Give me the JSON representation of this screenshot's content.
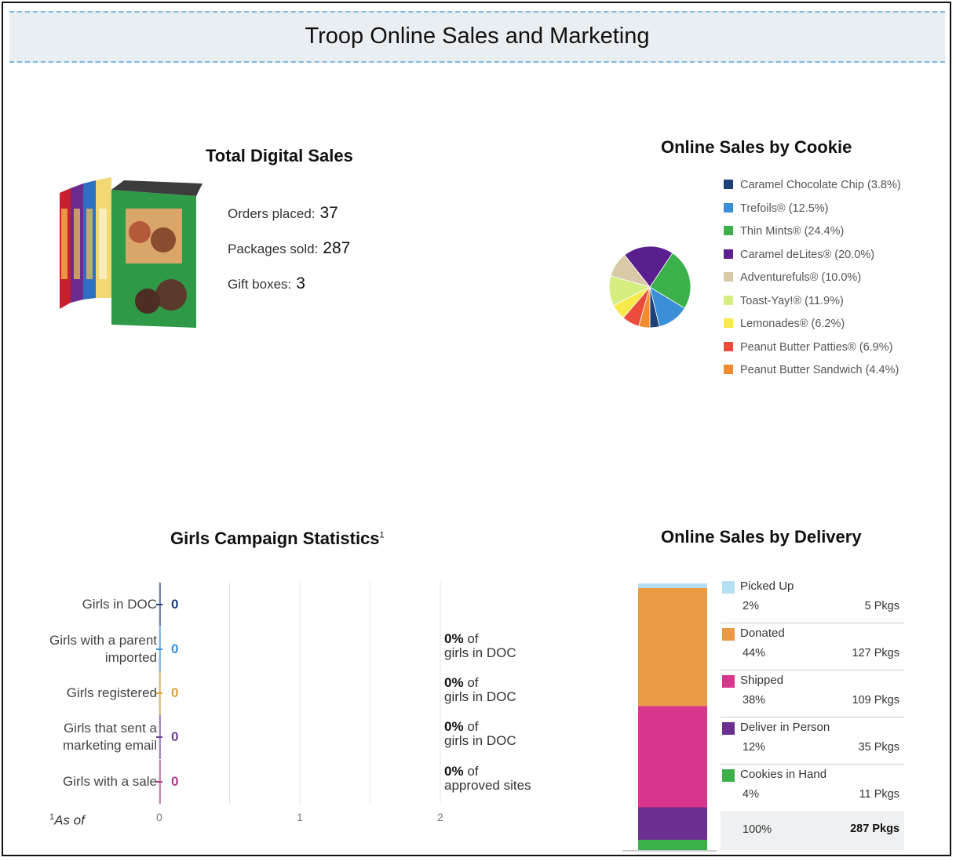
{
  "page": {
    "title": "Troop Online Sales and Marketing"
  },
  "digital": {
    "title": "Total Digital Sales",
    "stats": [
      {
        "label": "Orders placed:",
        "value": "37"
      },
      {
        "label": "Packages sold:",
        "value": "287"
      },
      {
        "label": "Gift boxes:",
        "value": "3"
      }
    ]
  },
  "cookies": {
    "title": "Online Sales by Cookie",
    "legend": [
      {
        "name": "Caramel Chocolate Chip (3.8%)",
        "color": "#1f3f7a"
      },
      {
        "name": "Trefoils® (12.5%)",
        "color": "#3a8fd6"
      },
      {
        "name": "Thin Mints® (24.4%)",
        "color": "#3cb04a"
      },
      {
        "name": "Caramel deLites® (20.0%)",
        "color": "#5a1f8f"
      },
      {
        "name": "Adventurefuls® (10.0%)",
        "color": "#d8c9a8"
      },
      {
        "name": "Toast-Yay!® (11.9%)",
        "color": "#d6ee7f"
      },
      {
        "name": "Lemonades® (6.2%)",
        "color": "#f7ea4a"
      },
      {
        "name": "Peanut Butter Patties® (6.9%)",
        "color": "#ea4d3c"
      },
      {
        "name": "Peanut Butter Sandwich (4.4%)",
        "color": "#f08b32"
      }
    ]
  },
  "girls": {
    "title": "Girls Campaign Statistics",
    "superscript": "1",
    "footnote_marker": "1",
    "footnote": "As of",
    "rows": [
      {
        "label": "Girls in DOC",
        "value": "0",
        "color": "#1f3f7a",
        "pct": "",
        "pct_of": "",
        "pct_target": ""
      },
      {
        "label": "Girls with a parent imported",
        "value": "0",
        "color": "#3a8fd6",
        "pct": "0%",
        "pct_of": "of",
        "pct_target": "girls in DOC"
      },
      {
        "label": "Girls registered",
        "value": "0",
        "color": "#d9a33a",
        "pct": "0%",
        "pct_of": "of",
        "pct_target": "girls in DOC"
      },
      {
        "label": "Girls that sent a marketing email",
        "value": "0",
        "color": "#6d3f96",
        "pct": "0%",
        "pct_of": "of",
        "pct_target": "girls in DOC"
      },
      {
        "label": "Girls with a sale",
        "value": "0",
        "color": "#b23a8c",
        "pct": "0%",
        "pct_of": "of",
        "pct_target": "approved sites"
      }
    ],
    "ticks": [
      "0",
      "1",
      "2"
    ]
  },
  "delivery": {
    "title": "Online Sales by Delivery",
    "items": [
      {
        "name": "Picked Up",
        "pct": "2%",
        "pkgs": "5 Pkgs",
        "color": "#b5dff2"
      },
      {
        "name": "Donated",
        "pct": "44%",
        "pkgs": "127 Pkgs",
        "color": "#ea9a45"
      },
      {
        "name": "Shipped",
        "pct": "38%",
        "pkgs": "109 Pkgs",
        "color": "#d8368a"
      },
      {
        "name": "Deliver in Person",
        "pct": "12%",
        "pkgs": "35 Pkgs",
        "color": "#6a2f8f"
      },
      {
        "name": "Cookies in Hand",
        "pct": "4%",
        "pkgs": "11 Pkgs",
        "color": "#3cb04a"
      }
    ],
    "total_pct": "100%",
    "total_pkgs": "287 Pkgs"
  },
  "chart_data": [
    {
      "type": "pie",
      "title": "Online Sales by Cookie",
      "categories": [
        "Caramel Chocolate Chip",
        "Trefoils®",
        "Thin Mints®",
        "Caramel deLites®",
        "Adventurefuls®",
        "Toast-Yay!®",
        "Lemonades®",
        "Peanut Butter Patties®",
        "Peanut Butter Sandwich"
      ],
      "values": [
        3.8,
        12.5,
        24.4,
        20.0,
        10.0,
        11.9,
        6.2,
        6.9,
        4.4
      ],
      "legend": "right"
    },
    {
      "type": "bar",
      "title": "Girls Campaign Statistics",
      "categories": [
        "Girls in DOC",
        "Girls with a parent imported",
        "Girls registered",
        "Girls that sent a marketing email",
        "Girls with a sale"
      ],
      "values": [
        0,
        0,
        0,
        0,
        0
      ],
      "xlim": [
        0,
        2
      ],
      "orientation": "horizontal",
      "grid": true
    },
    {
      "type": "bar",
      "title": "Online Sales by Delivery",
      "stacked": true,
      "categories": [
        "Picked Up",
        "Donated",
        "Shipped",
        "Deliver in Person",
        "Cookies in Hand"
      ],
      "values": [
        5,
        127,
        109,
        35,
        11
      ],
      "percent": [
        2,
        44,
        38,
        12,
        4
      ],
      "total": 287,
      "legend": "right"
    }
  ]
}
